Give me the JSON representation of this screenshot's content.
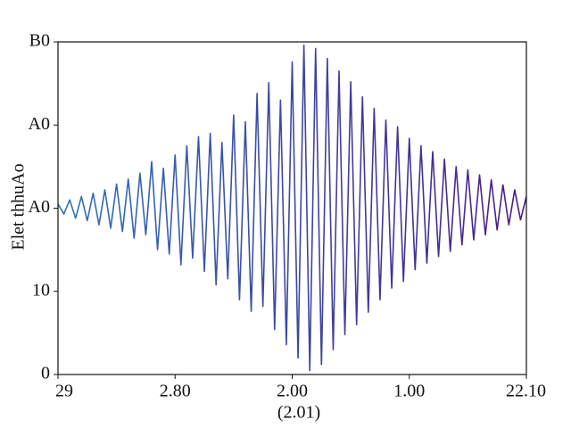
{
  "chart_data": {
    "type": "line",
    "xlabel": "(2.01)",
    "ylabel": "Elet thhuAo",
    "xlim": [
      0,
      4
    ],
    "xticks": [
      {
        "value": 0,
        "label": "29"
      },
      {
        "value": 1,
        "label": "2.80"
      },
      {
        "value": 2,
        "label": "2.00"
      },
      {
        "value": 3,
        "label": "1.00"
      },
      {
        "value": 4,
        "label": "22.10"
      }
    ],
    "ylim": [
      0,
      40
    ],
    "yticks": [
      {
        "value": 40,
        "label": "B0"
      },
      {
        "value": 30,
        "label": "A0"
      },
      {
        "value": 20,
        "label": "A0"
      },
      10,
      0
    ],
    "grid": false,
    "series": [
      {
        "color": [
          "#2f72b8",
          "#4a1c8c"
        ],
        "x": [
          0,
          0.05,
          0.1,
          0.15,
          0.2,
          0.25,
          0.3,
          0.35,
          0.4,
          0.45,
          0.5,
          0.55,
          0.6,
          0.65,
          0.7,
          0.75,
          0.8,
          0.85,
          0.9,
          0.95,
          1,
          1.05,
          1.1,
          1.15,
          1.2,
          1.25,
          1.3,
          1.35,
          1.4,
          1.45,
          1.5,
          1.55,
          1.6,
          1.65,
          1.7,
          1.75,
          1.8,
          1.85,
          1.9,
          1.95,
          2,
          2.05,
          2.1,
          2.15,
          2.2,
          2.25,
          2.3,
          2.35,
          2.4,
          2.45,
          2.5,
          2.55,
          2.6,
          2.65,
          2.7,
          2.75,
          2.8,
          2.85,
          2.9,
          2.95,
          3,
          3.05,
          3.1,
          3.15,
          3.2,
          3.25,
          3.3,
          3.35,
          3.4,
          3.45,
          3.5,
          3.55,
          3.6,
          3.65,
          3.7,
          3.75,
          3.8,
          3.85,
          3.9,
          3.95,
          4
        ],
        "values": [
          20.5,
          19.3,
          21.0,
          18.8,
          21.4,
          18.5,
          21.8,
          18.0,
          22.2,
          17.6,
          22.9,
          17.2,
          23.5,
          16.4,
          24.2,
          16.8,
          25.6,
          15.0,
          24.8,
          14.5,
          26.4,
          13.2,
          27.5,
          14.0,
          28.6,
          12.4,
          29.0,
          10.8,
          27.9,
          11.5,
          31.2,
          9.0,
          30.4,
          7.6,
          33.8,
          8.2,
          35.1,
          5.4,
          33.0,
          3.6,
          37.6,
          2.0,
          39.6,
          0.5,
          39.2,
          1.2,
          38.0,
          3.0,
          36.5,
          4.8,
          35.2,
          6.0,
          33.4,
          7.5,
          32.0,
          9.0,
          30.6,
          10.4,
          29.8,
          11.2,
          28.4,
          12.6,
          27.5,
          13.4,
          26.8,
          14.2,
          25.9,
          14.8,
          25.0,
          15.6,
          24.6,
          16.2,
          24.0,
          16.8,
          23.4,
          17.4,
          22.8,
          18.0,
          22.2,
          18.6,
          21.4
        ]
      }
    ]
  }
}
